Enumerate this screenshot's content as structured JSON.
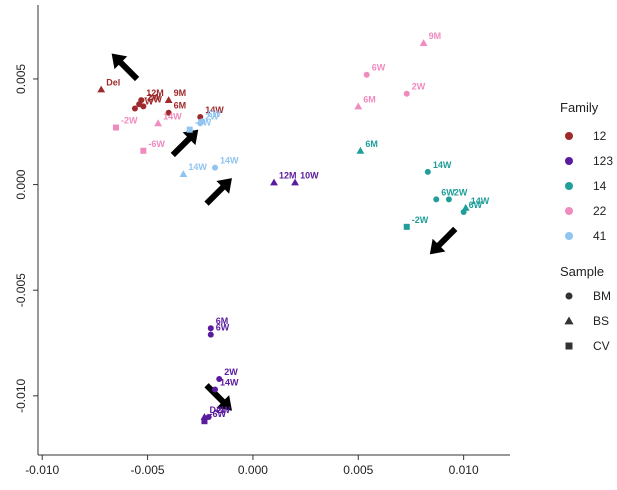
{
  "chart_data": {
    "type": "scatter",
    "title": "",
    "xlabel": "",
    "ylabel": "",
    "xlim": [
      -0.0102,
      0.0122
    ],
    "ylim": [
      -0.0128,
      0.0085
    ],
    "xticks": [
      -0.01,
      -0.005,
      0.0,
      0.005,
      0.01
    ],
    "xtick_labels": [
      "-0.010",
      "-0.005",
      "0.000",
      "0.005",
      "0.010"
    ],
    "yticks": [
      0.005,
      0.0,
      -0.005,
      -0.01
    ],
    "ytick_labels": [
      "0.005",
      "0.000",
      "-0.005",
      "-0.010"
    ],
    "grid": false,
    "families": [
      {
        "name": "12",
        "color": "#9e2a2b"
      },
      {
        "name": "123",
        "color": "#5a1b9e"
      },
      {
        "name": "14",
        "color": "#1f9e9a"
      },
      {
        "name": "22",
        "color": "#f08bbf"
      },
      {
        "name": "41",
        "color": "#8fc5f0"
      }
    ],
    "samples": [
      {
        "name": "BM",
        "shape": "circle"
      },
      {
        "name": "BS",
        "shape": "triangle"
      },
      {
        "name": "CV",
        "shape": "square"
      }
    ],
    "legend": {
      "family_title": "Family",
      "sample_title": "Sample",
      "placement": "right"
    },
    "points": [
      {
        "x": -0.0072,
        "y": 0.0045,
        "family": "12",
        "sample": "BS",
        "label": "Del"
      },
      {
        "x": -0.0053,
        "y": 0.004,
        "family": "12",
        "sample": "BM",
        "label": "12M"
      },
      {
        "x": -0.0054,
        "y": 0.0038,
        "family": "12",
        "sample": "BM",
        "label": "-2W"
      },
      {
        "x": -0.0056,
        "y": 0.0036,
        "family": "12",
        "sample": "BM",
        "label": "2W"
      },
      {
        "x": -0.0052,
        "y": 0.0037,
        "family": "12",
        "sample": "BM",
        "label": "6W"
      },
      {
        "x": -0.004,
        "y": 0.004,
        "family": "12",
        "sample": "BS",
        "label": "9M"
      },
      {
        "x": -0.004,
        "y": 0.0034,
        "family": "12",
        "sample": "BM",
        "label": "6M"
      },
      {
        "x": -0.0025,
        "y": 0.0032,
        "family": "12",
        "sample": "BM",
        "label": "14W"
      },
      {
        "x": 0.001,
        "y": 0.0001,
        "family": "123",
        "sample": "BS",
        "label": "12M"
      },
      {
        "x": 0.002,
        "y": 0.0001,
        "family": "123",
        "sample": "BS",
        "label": "10W"
      },
      {
        "x": -0.002,
        "y": -0.0068,
        "family": "123",
        "sample": "BM",
        "label": "6M"
      },
      {
        "x": -0.002,
        "y": -0.0071,
        "family": "123",
        "sample": "BM",
        "label": "6W"
      },
      {
        "x": -0.0016,
        "y": -0.0092,
        "family": "123",
        "sample": "BM",
        "label": "2W"
      },
      {
        "x": -0.0018,
        "y": -0.0097,
        "family": "123",
        "sample": "BM",
        "label": "14W"
      },
      {
        "x": -0.0023,
        "y": -0.011,
        "family": "123",
        "sample": "BS",
        "label": "Del"
      },
      {
        "x": -0.0021,
        "y": -0.011,
        "family": "123",
        "sample": "BM",
        "label": "-2W"
      },
      {
        "x": -0.0023,
        "y": -0.0112,
        "family": "123",
        "sample": "CV",
        "label": "-6W"
      },
      {
        "x": 0.0051,
        "y": 0.0016,
        "family": "14",
        "sample": "BS",
        "label": "6M"
      },
      {
        "x": 0.0083,
        "y": 0.0006,
        "family": "14",
        "sample": "BM",
        "label": "14W"
      },
      {
        "x": 0.0087,
        "y": -0.0007,
        "family": "14",
        "sample": "BM",
        "label": "6W"
      },
      {
        "x": 0.0093,
        "y": -0.0007,
        "family": "14",
        "sample": "BM",
        "label": "2W"
      },
      {
        "x": 0.0101,
        "y": -0.0011,
        "family": "14",
        "sample": "BS",
        "label": "14W"
      },
      {
        "x": 0.01,
        "y": -0.0013,
        "family": "14",
        "sample": "BM",
        "label": "6W"
      },
      {
        "x": 0.0073,
        "y": -0.002,
        "family": "14",
        "sample": "CV",
        "label": "-2W"
      },
      {
        "x": 0.0081,
        "y": 0.0067,
        "family": "22",
        "sample": "BS",
        "label": "9M"
      },
      {
        "x": 0.0054,
        "y": 0.0052,
        "family": "22",
        "sample": "BM",
        "label": "6W"
      },
      {
        "x": 0.005,
        "y": 0.0037,
        "family": "22",
        "sample": "BS",
        "label": "6M"
      },
      {
        "x": 0.0073,
        "y": 0.0043,
        "family": "22",
        "sample": "BM",
        "label": "2W"
      },
      {
        "x": -0.0065,
        "y": 0.0027,
        "family": "22",
        "sample": "CV",
        "label": "-2W"
      },
      {
        "x": -0.0045,
        "y": 0.0029,
        "family": "22",
        "sample": "BS",
        "label": "14W"
      },
      {
        "x": -0.0052,
        "y": 0.0016,
        "family": "22",
        "sample": "CV",
        "label": "-6W"
      },
      {
        "x": -0.0024,
        "y": 0.003,
        "family": "41",
        "sample": "BM",
        "label": "6W"
      },
      {
        "x": -0.0025,
        "y": 0.0029,
        "family": "41",
        "sample": "BM",
        "label": "2W"
      },
      {
        "x": -0.003,
        "y": 0.0026,
        "family": "41",
        "sample": "CV",
        "label": "-2W"
      },
      {
        "x": -0.0018,
        "y": 0.0008,
        "family": "41",
        "sample": "BM",
        "label": "14W"
      },
      {
        "x": -0.0033,
        "y": 0.0005,
        "family": "41",
        "sample": "BS",
        "label": "14W"
      }
    ],
    "arrows": [
      {
        "x": -0.0059,
        "y": 0.0054,
        "angle": 225
      },
      {
        "x": -0.0034,
        "y": 0.0018,
        "angle": 315
      },
      {
        "x": -0.0018,
        "y": -0.0005,
        "angle": 315
      },
      {
        "x": -0.0018,
        "y": -0.0099,
        "angle": 45
      },
      {
        "x": 0.0092,
        "y": -0.0025,
        "angle": 135
      }
    ]
  }
}
